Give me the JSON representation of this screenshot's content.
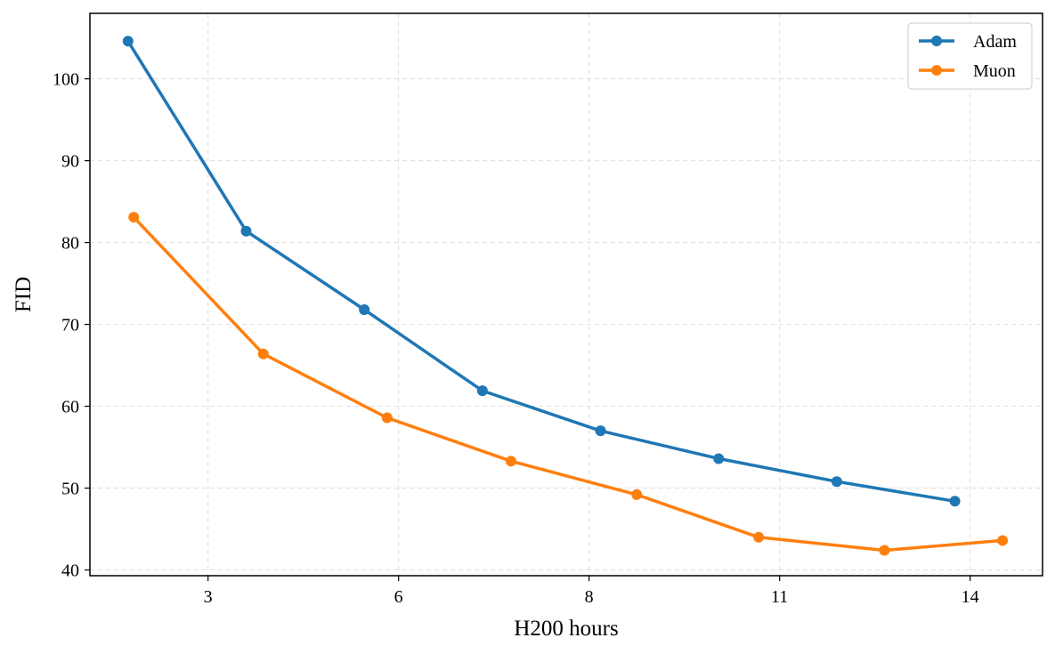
{
  "chart_data": {
    "type": "line",
    "title": "",
    "xlabel": "H200 hours",
    "ylabel": "FID",
    "x_ticks": [
      {
        "label": "3",
        "pos": 1
      },
      {
        "label": "6",
        "pos": 2
      },
      {
        "label": "8",
        "pos": 3
      },
      {
        "label": "11",
        "pos": 4
      },
      {
        "label": "14",
        "pos": 5
      }
    ],
    "xlim": [
      0.38,
      5.38
    ],
    "y_ticks": [
      40,
      50,
      60,
      70,
      80,
      90,
      100
    ],
    "ylim": [
      39.3,
      108.0
    ],
    "grid": true,
    "legend": "top-right",
    "series": [
      {
        "name": "Adam",
        "color": "#1f77b4",
        "points": [
          {
            "x": 0.58,
            "y": 104.6
          },
          {
            "x": 1.2,
            "y": 81.4
          },
          {
            "x": 1.82,
            "y": 71.8
          },
          {
            "x": 2.44,
            "y": 61.9
          },
          {
            "x": 3.06,
            "y": 57.0
          },
          {
            "x": 3.68,
            "y": 53.6
          },
          {
            "x": 4.3,
            "y": 50.8
          },
          {
            "x": 4.92,
            "y": 48.4
          }
        ]
      },
      {
        "name": "Muon",
        "color": "#ff7f0e",
        "points": [
          {
            "x": 0.61,
            "y": 83.1
          },
          {
            "x": 1.29,
            "y": 66.4
          },
          {
            "x": 1.94,
            "y": 58.6
          },
          {
            "x": 2.59,
            "y": 53.3
          },
          {
            "x": 3.25,
            "y": 49.2
          },
          {
            "x": 3.89,
            "y": 44.0
          },
          {
            "x": 4.55,
            "y": 42.4
          },
          {
            "x": 5.17,
            "y": 43.6
          }
        ]
      }
    ]
  }
}
